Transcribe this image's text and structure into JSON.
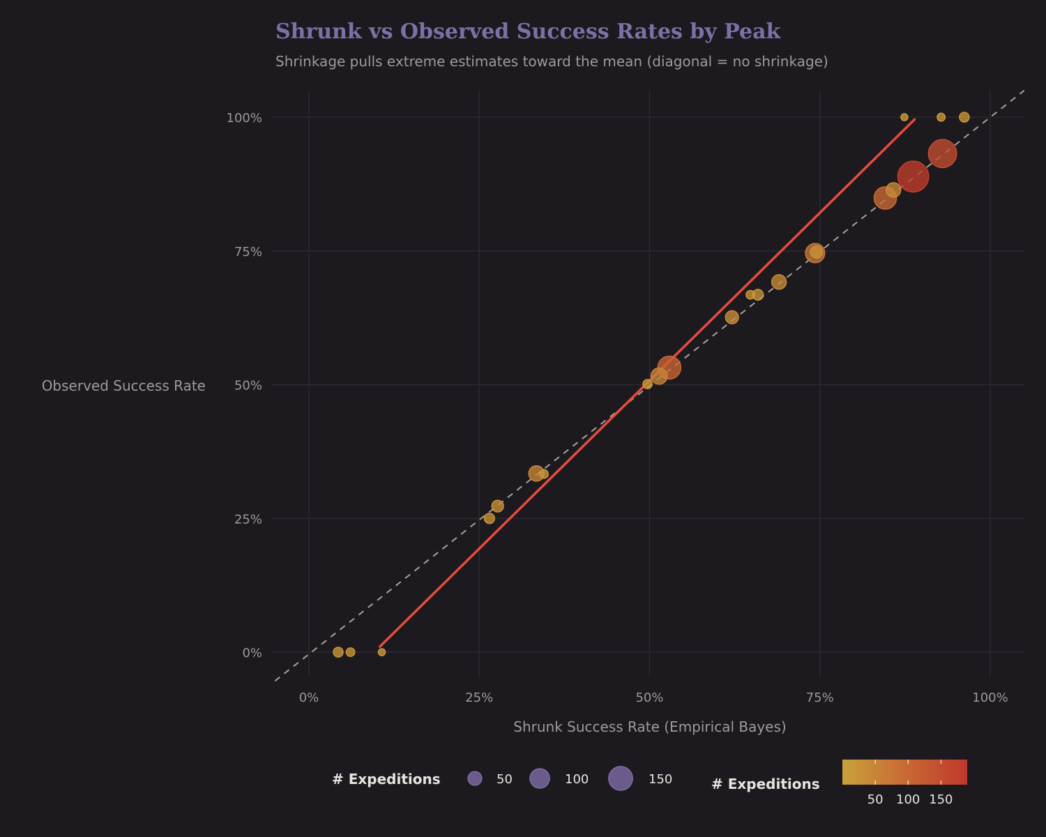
{
  "chart_data": {
    "type": "scatter",
    "title": "Shrunk vs Observed Success Rates by Peak",
    "subtitle": "Shrinkage pulls extreme estimates toward the mean (diagonal = no shrinkage)",
    "xlabel": "Shrunk Success Rate (Empirical Bayes)",
    "ylabel": "Observed Success Rate",
    "xlim": [
      -5,
      105
    ],
    "ylim": [
      -5,
      105
    ],
    "x_ticks": [
      "0%",
      "25%",
      "50%",
      "75%",
      "100%"
    ],
    "y_ticks": [
      "0%",
      "25%",
      "50%",
      "75%",
      "100%"
    ],
    "grid": true,
    "colors": {
      "low": "#c9a13a",
      "mid": "#c96a35",
      "high": "#c0392b",
      "fit_line": "#e74c3c",
      "diagonal": "#a8a39f",
      "size_legend": "#6b5b8a"
    },
    "points": [
      {
        "x": 4.3,
        "y": 0,
        "n": 18
      },
      {
        "x": 6.1,
        "y": 0,
        "n": 14
      },
      {
        "x": 10.7,
        "y": 0,
        "n": 9
      },
      {
        "x": 26.5,
        "y": 25.0,
        "n": 20
      },
      {
        "x": 27.7,
        "y": 27.3,
        "n": 26
      },
      {
        "x": 33.4,
        "y": 33.4,
        "n": 45
      },
      {
        "x": 34.5,
        "y": 33.3,
        "n": 14
      },
      {
        "x": 49.7,
        "y": 50.1,
        "n": 16
      },
      {
        "x": 51.4,
        "y": 51.6,
        "n": 50
      },
      {
        "x": 52.9,
        "y": 53.2,
        "n": 100
      },
      {
        "x": 62.1,
        "y": 62.6,
        "n": 32
      },
      {
        "x": 64.8,
        "y": 66.8,
        "n": 14
      },
      {
        "x": 65.9,
        "y": 66.8,
        "n": 22
      },
      {
        "x": 69.0,
        "y": 69.2,
        "n": 40
      },
      {
        "x": 74.3,
        "y": 74.6,
        "n": 70
      },
      {
        "x": 74.5,
        "y": 74.8,
        "n": 28
      },
      {
        "x": 84.6,
        "y": 84.9,
        "n": 95
      },
      {
        "x": 85.8,
        "y": 86.4,
        "n": 40
      },
      {
        "x": 88.7,
        "y": 88.9,
        "n": 180
      },
      {
        "x": 93.0,
        "y": 93.2,
        "n": 150
      },
      {
        "x": 87.4,
        "y": 100,
        "n": 6
      },
      {
        "x": 92.8,
        "y": 100,
        "n": 12
      },
      {
        "x": 96.2,
        "y": 100,
        "n": 18
      }
    ],
    "fit_line": [
      {
        "x": 10.3,
        "y": 0.9
      },
      {
        "x": 89.0,
        "y": 99.7
      }
    ],
    "diagonal": [
      {
        "x": -5,
        "y": -5
      },
      {
        "x": 105,
        "y": 105
      }
    ],
    "size_legend": {
      "title": "# Expeditions",
      "values": [
        50,
        100,
        150
      ],
      "labels": [
        "50",
        "100",
        "150"
      ]
    },
    "color_legend": {
      "title": "# Expeditions",
      "range": [
        0,
        190
      ],
      "ticks": [
        50,
        100,
        150
      ],
      "labels": [
        "50",
        "100",
        "150"
      ]
    },
    "legend_position": "bottom"
  }
}
